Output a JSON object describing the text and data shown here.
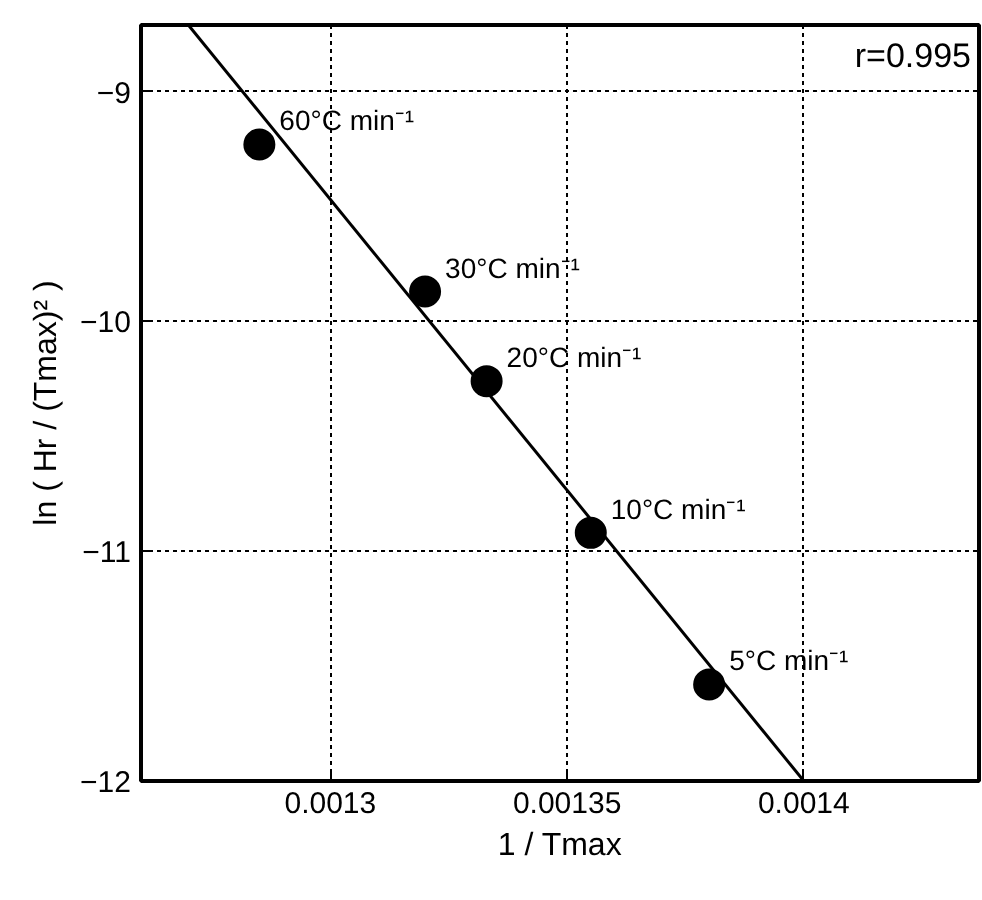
{
  "chart_data": {
    "type": "scatter",
    "xlabel": "1 / Tmax",
    "ylabel": "ln ( Hr / (Tmax)² )",
    "xlim": [
      0.00126,
      0.001437
    ],
    "ylim": [
      -12,
      -8.71
    ],
    "xticks": [
      0.0013,
      0.00135,
      0.0014
    ],
    "yticks": [
      -12,
      -11,
      -10,
      -9
    ],
    "grid": true,
    "series": [
      {
        "marker": "circle",
        "color": "#000000",
        "x": [
          0.001285,
          0.00132,
          0.001333,
          0.001355,
          0.00138
        ],
        "values": [
          -9.23,
          -9.87,
          -10.26,
          -10.92,
          -11.58
        ]
      },
      {
        "type": "line",
        "marker": "none",
        "color": "#000000",
        "x": [
          0.00127,
          0.0014
        ],
        "values": [
          -8.71,
          -12
        ]
      }
    ],
    "annotations": [
      {
        "text": "60°C min⁻¹",
        "x": 0.001285,
        "y": -9.23
      },
      {
        "text": "30°C min⁻¹",
        "x": 0.00132,
        "y": -9.87
      },
      {
        "text": "20°C min⁻¹",
        "x": 0.001333,
        "y": -10.26
      },
      {
        "text": "10°C min⁻¹",
        "x": 0.001355,
        "y": -10.92
      },
      {
        "text": "5°C min⁻¹",
        "x": 0.00138,
        "y": -11.58
      },
      "r=0.995"
    ]
  }
}
